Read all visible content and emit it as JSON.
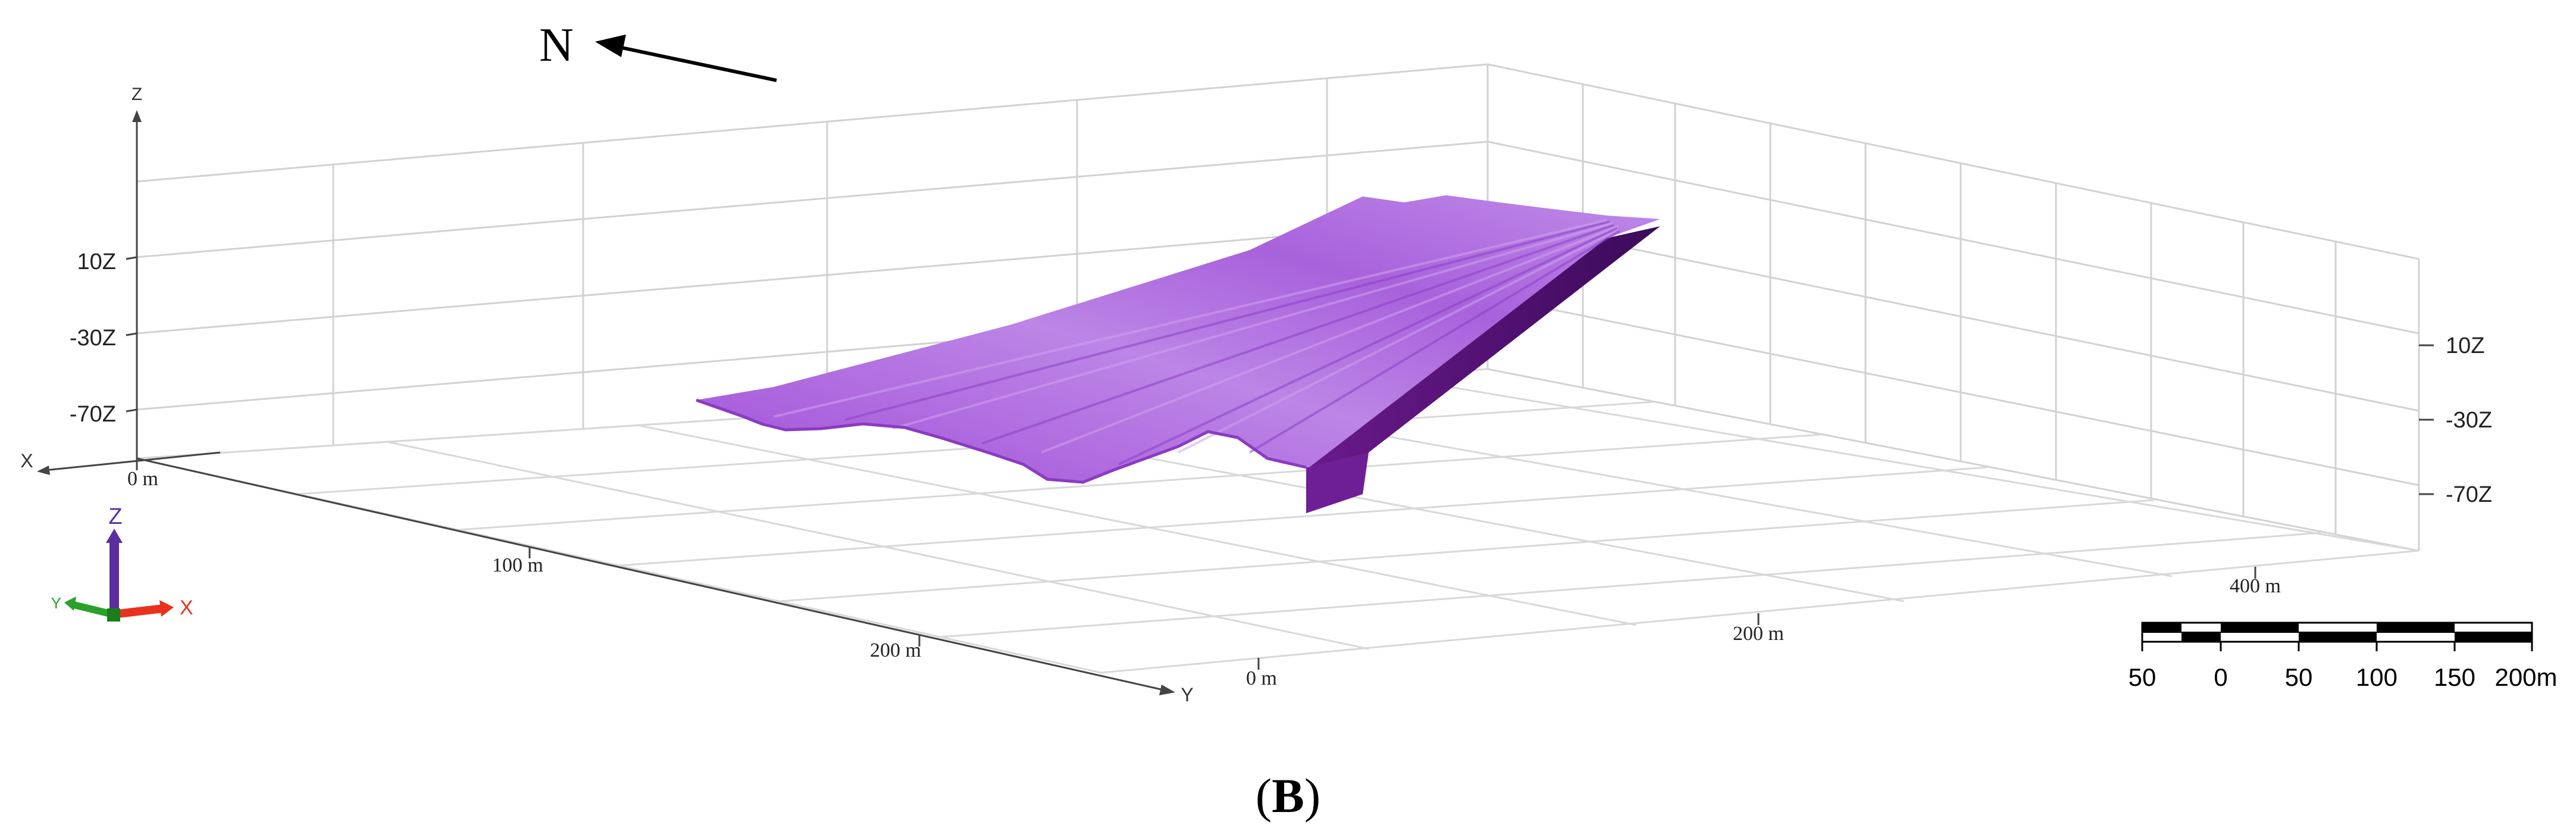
{
  "north_arrow": {
    "label": "N"
  },
  "axes": {
    "x_label": "X",
    "y_label": "Y",
    "z_label": "Z",
    "z_ticks_left": [
      "10Z",
      "-30Z",
      "-70Z"
    ],
    "z_ticks_right": [
      "10Z",
      "-30Z",
      "-70Z"
    ],
    "y_ticks": [
      "0 m",
      "100 m",
      "200 m"
    ],
    "x_ticks": [
      "0 m",
      "200 m",
      "400 m"
    ]
  },
  "orientation_gizmo": {
    "z_label": "Z",
    "x_label": "X",
    "y_label": "Y",
    "colors": {
      "z": "#5b2fa0",
      "x": "#e8321e",
      "y": "#2aa12a"
    }
  },
  "scale_bar": {
    "labels": [
      "50",
      "0",
      "50",
      "100",
      "150",
      "200m"
    ]
  },
  "surface": {
    "color_top": "#b77ee0",
    "color_mid": "#9a49d4",
    "color_side": "#5a0f7a",
    "color_dark": "#3b0a5a"
  },
  "caption": {
    "letter": "B",
    "open": "(",
    "close": ")"
  }
}
